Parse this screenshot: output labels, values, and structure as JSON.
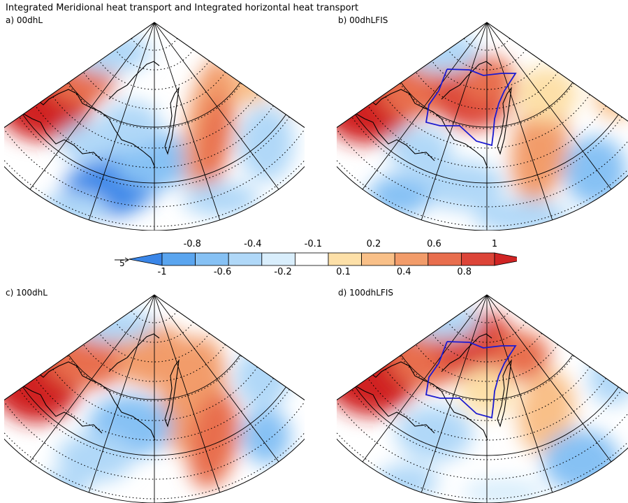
{
  "title": "Integrated Meridional heat transport and Integrated horizontal heat transport",
  "panels": [
    {
      "label": "a) 00dhL",
      "pattern": "A",
      "ice_outline": false
    },
    {
      "label": "b) 00dhLFIS",
      "pattern": "B",
      "ice_outline": true
    },
    {
      "label": "c) 100dhL",
      "pattern": "C",
      "ice_outline": false
    },
    {
      "label": "d) 100dhLFIS",
      "pattern": "D",
      "ice_outline": true
    }
  ],
  "colorbar": {
    "levels": [
      "-1",
      "-0.8",
      "-0.6",
      "-0.4",
      "-0.2",
      "-0.1",
      "0.1",
      "0.2",
      "0.4",
      "0.6",
      "0.8",
      "1"
    ],
    "upper_labels": [
      "-0.8",
      "-0.4",
      "-0.1",
      "0.2",
      "0.6",
      "1"
    ],
    "lower_labels": [
      "-1",
      "-0.6",
      "-0.2",
      "0.1",
      "0.4",
      "0.8"
    ],
    "colors": [
      "#3a86e8",
      "#5aa5ef",
      "#86c1f4",
      "#b0d8f8",
      "#d9eefc",
      "#ffffff",
      "#fde0a8",
      "#f9c088",
      "#f29c6a",
      "#e86e4e",
      "#dc4438",
      "#d02424"
    ]
  },
  "reference_vector": {
    "label": "5"
  },
  "colors": {
    "ice_outline": "#1a1ad0",
    "coast": "#000000",
    "vectors": "#000000"
  }
}
